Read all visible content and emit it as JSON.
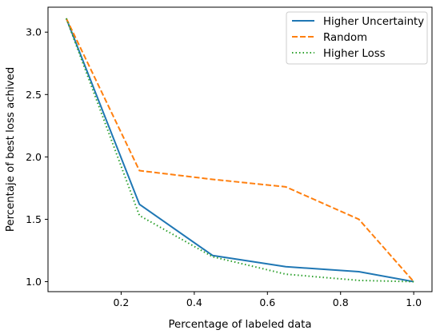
{
  "chart_data": {
    "type": "line",
    "xlabel": "Percentage of labeled data",
    "ylabel": "Percentaje of best loss achived",
    "xlim": [
      0.0,
      1.05
    ],
    "ylim": [
      0.92,
      3.2
    ],
    "xticks": [
      0.2,
      0.4,
      0.6,
      0.8,
      1.0
    ],
    "xtick_labels": [
      "0.2",
      "0.4",
      "0.6",
      "0.8",
      "1.0"
    ],
    "yticks": [
      1.0,
      1.5,
      2.0,
      2.5,
      3.0
    ],
    "ytick_labels": [
      "1.0",
      "1.5",
      "2.0",
      "2.5",
      "3.0"
    ],
    "grid": false,
    "legend_position": "top-right",
    "x": [
      0.05,
      0.25,
      0.45,
      0.65,
      0.85,
      1.0
    ],
    "series": [
      {
        "name": "Higher Uncertainty",
        "values": [
          3.11,
          1.62,
          1.21,
          1.12,
          1.08,
          1.0
        ],
        "color": "#1f77b4",
        "linestyle": "solid"
      },
      {
        "name": "Random",
        "values": [
          3.11,
          1.89,
          1.82,
          1.76,
          1.5,
          1.0
        ],
        "color": "#ff7f0e",
        "linestyle": "dashed"
      },
      {
        "name": "Higher Loss",
        "values": [
          3.11,
          1.53,
          1.2,
          1.06,
          1.01,
          1.0
        ],
        "color": "#2ca02c",
        "linestyle": "dotted"
      }
    ]
  }
}
